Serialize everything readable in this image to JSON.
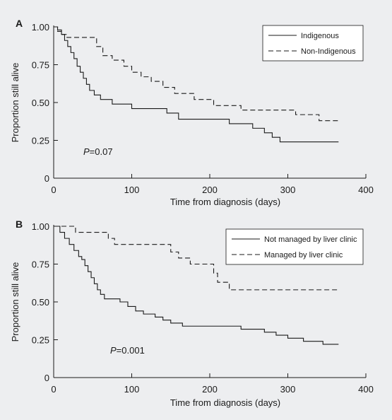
{
  "chart_data": [
    {
      "type": "line",
      "panel": "A",
      "xlabel": "Time from diagnosis (days)",
      "ylabel": "Proportion still alive",
      "xlim": [
        0,
        400
      ],
      "ylim": [
        0,
        1
      ],
      "xticks": [
        0,
        100,
        200,
        300,
        400
      ],
      "yticks": [
        0,
        0.25,
        0.5,
        0.75,
        1.0
      ],
      "xtick_labels": [
        "0",
        "100",
        "200",
        "300",
        "400"
      ],
      "ytick_labels": [
        "0",
        "0.25",
        "0.50",
        "0.75",
        "1.00"
      ],
      "legend_position": "top-right",
      "annotation": {
        "p_label": "P",
        "p_value": "=0.07"
      },
      "grid": false,
      "series": [
        {
          "name": "Indigenous",
          "style": "solid",
          "x": [
            0,
            5,
            10,
            14,
            18,
            22,
            26,
            30,
            34,
            38,
            42,
            46,
            52,
            60,
            75,
            100,
            145,
            160,
            200,
            225,
            255,
            270,
            280,
            290,
            365
          ],
          "y": [
            1.0,
            0.98,
            0.95,
            0.91,
            0.87,
            0.83,
            0.79,
            0.74,
            0.7,
            0.66,
            0.62,
            0.58,
            0.55,
            0.52,
            0.49,
            0.46,
            0.43,
            0.39,
            0.39,
            0.36,
            0.33,
            0.3,
            0.27,
            0.24,
            0.24
          ]
        },
        {
          "name": "Non-Indigenous",
          "style": "dashed",
          "x": [
            0,
            5,
            10,
            17,
            55,
            63,
            75,
            90,
            100,
            112,
            125,
            140,
            155,
            180,
            205,
            230,
            240,
            260,
            300,
            310,
            330,
            340,
            365
          ],
          "y": [
            1.0,
            0.97,
            0.95,
            0.93,
            0.87,
            0.81,
            0.78,
            0.74,
            0.7,
            0.67,
            0.64,
            0.6,
            0.56,
            0.52,
            0.48,
            0.48,
            0.45,
            0.45,
            0.45,
            0.42,
            0.42,
            0.38,
            0.38
          ]
        }
      ]
    },
    {
      "type": "line",
      "panel": "B",
      "xlabel": "Time from diagnosis (days)",
      "ylabel": "Proportion still alive",
      "xlim": [
        0,
        400
      ],
      "ylim": [
        0,
        1
      ],
      "xticks": [
        0,
        100,
        200,
        300,
        400
      ],
      "yticks": [
        0,
        0.25,
        0.5,
        0.75,
        1.0
      ],
      "xtick_labels": [
        "0",
        "100",
        "200",
        "300",
        "400"
      ],
      "ytick_labels": [
        "0",
        "0.25",
        "0.50",
        "0.75",
        "1.00"
      ],
      "legend_position": "top-right",
      "annotation": {
        "p_label": "P",
        "p_value": "=0.001"
      },
      "grid": false,
      "series": [
        {
          "name": "Not managed by liver clinic",
          "style": "solid",
          "x": [
            0,
            8,
            14,
            20,
            26,
            32,
            36,
            40,
            44,
            48,
            52,
            56,
            60,
            65,
            85,
            95,
            105,
            115,
            130,
            140,
            150,
            165,
            240,
            270,
            285,
            300,
            320,
            345,
            365
          ],
          "y": [
            1.0,
            0.96,
            0.92,
            0.88,
            0.84,
            0.8,
            0.78,
            0.74,
            0.7,
            0.66,
            0.62,
            0.58,
            0.55,
            0.52,
            0.5,
            0.47,
            0.44,
            0.42,
            0.4,
            0.38,
            0.36,
            0.34,
            0.32,
            0.3,
            0.28,
            0.26,
            0.24,
            0.22,
            0.22
          ]
        },
        {
          "name": "Managed by liver clinic",
          "style": "dashed",
          "x": [
            0,
            28,
            70,
            78,
            150,
            160,
            175,
            205,
            210,
            225,
            365
          ],
          "y": [
            1.0,
            0.96,
            0.92,
            0.88,
            0.83,
            0.79,
            0.75,
            0.69,
            0.63,
            0.58,
            0.58
          ]
        }
      ]
    }
  ]
}
